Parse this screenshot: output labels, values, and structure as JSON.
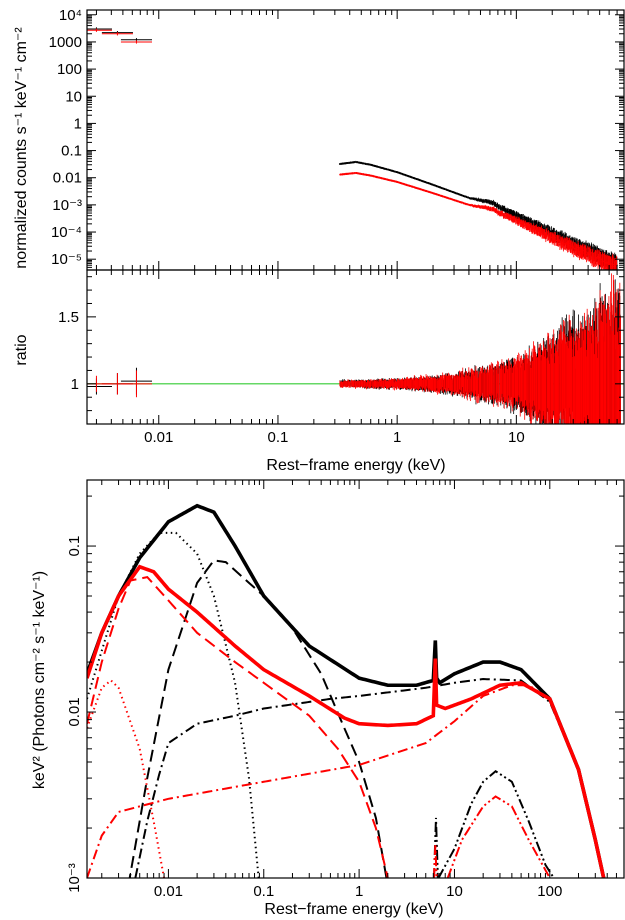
{
  "colors": {
    "black": "#000000",
    "red": "#ff0000",
    "unity": "#33cc33"
  },
  "chart_data": [
    {
      "panel": "top",
      "type": "scatter",
      "ylabel": "normalized counts s⁻¹ keV⁻¹ cm⁻²",
      "xscale": "log",
      "yscale": "log",
      "xlim": [
        0.0025,
        80
      ],
      "ylim": [
        4e-06,
        15000
      ],
      "y_ticklabels": [
        {
          "v": 10000,
          "t": "10⁴"
        },
        {
          "v": 1000,
          "t": "1000"
        },
        {
          "v": 100,
          "t": "100"
        },
        {
          "v": 10,
          "t": "10"
        },
        {
          "v": 1,
          "t": "1"
        },
        {
          "v": 0.1,
          "t": "0.1"
        },
        {
          "v": 0.01,
          "t": "0.01"
        },
        {
          "v": 0.001,
          "t": "10⁻³"
        },
        {
          "v": 0.0001,
          "t": "10⁻⁴"
        },
        {
          "v": 1e-05,
          "t": "10⁻⁵"
        }
      ],
      "series": [
        {
          "color": "black",
          "uv_points": [
            [
              0.003,
              3000
            ],
            [
              0.0045,
              2200
            ],
            [
              0.0065,
              1200
            ]
          ],
          "xray_curve": [
            [
              0.33,
              0.032
            ],
            [
              0.45,
              0.038
            ],
            [
              0.6,
              0.03
            ],
            [
              1,
              0.016
            ],
            [
              2,
              0.0055
            ],
            [
              4,
              0.0018
            ],
            [
              6.4,
              0.0012
            ],
            [
              7,
              0.0009
            ],
            [
              10,
              0.0004
            ],
            [
              20,
              9e-05
            ],
            [
              40,
              2e-05
            ],
            [
              70,
              6.5e-06
            ]
          ]
        },
        {
          "color": "red",
          "uv_points": [
            [
              0.003,
              2700
            ],
            [
              0.0045,
              2000
            ],
            [
              0.0065,
              1000
            ]
          ],
          "xray_curve": [
            [
              0.33,
              0.013
            ],
            [
              0.45,
              0.015
            ],
            [
              0.6,
              0.012
            ],
            [
              1,
              0.007
            ],
            [
              2,
              0.0027
            ],
            [
              4,
              0.001
            ],
            [
              6.4,
              0.0007
            ],
            [
              7,
              0.00055
            ],
            [
              10,
              0.00026
            ],
            [
              20,
              6e-05
            ],
            [
              40,
              1.5e-05
            ],
            [
              70,
              5e-06
            ]
          ]
        }
      ]
    },
    {
      "panel": "middle",
      "type": "scatter",
      "ylabel": "ratio",
      "xlabel": "Rest−frame energy (keV)",
      "xscale": "log",
      "xlim": [
        0.0025,
        80
      ],
      "ylim": [
        0.7,
        1.85
      ],
      "y_ticklabels": [
        {
          "v": 1,
          "t": "1"
        },
        {
          "v": 1.5,
          "t": "1.5"
        }
      ],
      "x_ticklabels": [
        {
          "v": 0.01,
          "t": "0.01"
        },
        {
          "v": 0.1,
          "t": "0.1"
        },
        {
          "v": 1,
          "t": "1"
        },
        {
          "v": 10,
          "t": "10"
        }
      ],
      "unity_line": 1,
      "scatter_growth": [
        [
          0.3,
          0.02
        ],
        [
          1,
          0.03
        ],
        [
          3,
          0.06
        ],
        [
          10,
          0.15
        ],
        [
          20,
          0.3
        ],
        [
          40,
          0.4
        ],
        [
          70,
          0.6
        ]
      ]
    },
    {
      "panel": "bottom",
      "type": "line",
      "ylabel": "keV² (Photons cm⁻² s⁻¹ keV⁻¹)",
      "xlabel": "Rest−frame energy (keV)",
      "xscale": "log",
      "yscale": "log",
      "xlim": [
        0.0014,
        600
      ],
      "ylim": [
        0.001,
        0.25
      ],
      "x_ticklabels": [
        {
          "v": 0.01,
          "t": "0.01"
        },
        {
          "v": 0.1,
          "t": "0.1"
        },
        {
          "v": 1,
          "t": "1"
        },
        {
          "v": 10,
          "t": "10"
        },
        {
          "v": 100,
          "t": "100"
        }
      ],
      "y_ticklabels": [
        {
          "v": 0.1,
          "t": "0.1"
        },
        {
          "v": 0.01,
          "t": "0.01"
        },
        {
          "v": 0.001,
          "t": "10⁻³"
        }
      ],
      "series": [
        {
          "color": "black",
          "style": "solid",
          "points": [
            [
              0.0014,
              0.017
            ],
            [
              0.002,
              0.03
            ],
            [
              0.003,
              0.05
            ],
            [
              0.005,
              0.085
            ],
            [
              0.01,
              0.14
            ],
            [
              0.02,
              0.175
            ],
            [
              0.03,
              0.16
            ],
            [
              0.05,
              0.1
            ],
            [
              0.1,
              0.05
            ],
            [
              0.3,
              0.025
            ],
            [
              1,
              0.016
            ],
            [
              2,
              0.0145
            ],
            [
              4,
              0.0145
            ],
            [
              6,
              0.0155
            ],
            [
              6.3,
              0.027
            ],
            [
              6.5,
              0.016
            ],
            [
              7,
              0.015
            ],
            [
              10,
              0.017
            ],
            [
              20,
              0.02
            ],
            [
              30,
              0.02
            ],
            [
              50,
              0.018
            ],
            [
              100,
              0.012
            ],
            [
              200,
              0.0045
            ],
            [
              300,
              0.0017
            ],
            [
              400,
              0.0008
            ]
          ]
        },
        {
          "color": "red",
          "style": "solid",
          "points": [
            [
              0.0014,
              0.016
            ],
            [
              0.002,
              0.03
            ],
            [
              0.003,
              0.05
            ],
            [
              0.005,
              0.075
            ],
            [
              0.007,
              0.07
            ],
            [
              0.01,
              0.055
            ],
            [
              0.02,
              0.04
            ],
            [
              0.05,
              0.025
            ],
            [
              0.1,
              0.018
            ],
            [
              0.3,
              0.0125
            ],
            [
              0.7,
              0.0092
            ],
            [
              1,
              0.0085
            ],
            [
              2,
              0.0083
            ],
            [
              4,
              0.0085
            ],
            [
              6,
              0.0095
            ],
            [
              6.3,
              0.021
            ],
            [
              6.5,
              0.011
            ],
            [
              8,
              0.0105
            ],
            [
              15,
              0.012
            ],
            [
              30,
              0.0145
            ],
            [
              50,
              0.015
            ],
            [
              100,
              0.012
            ],
            [
              200,
              0.0045
            ],
            [
              300,
              0.0017
            ],
            [
              400,
              0.0008
            ]
          ]
        },
        {
          "color": "black",
          "style": "dotted",
          "points": [
            [
              0.0014,
              0.012
            ],
            [
              0.003,
              0.05
            ],
            [
              0.005,
              0.09
            ],
            [
              0.008,
              0.12
            ],
            [
              0.012,
              0.12
            ],
            [
              0.02,
              0.09
            ],
            [
              0.03,
              0.05
            ],
            [
              0.05,
              0.015
            ],
            [
              0.07,
              0.004
            ],
            [
              0.09,
              0.0009
            ]
          ]
        },
        {
          "color": "black",
          "style": "dashed",
          "points": [
            [
              0.0038,
              0.0009
            ],
            [
              0.006,
              0.004
            ],
            [
              0.01,
              0.018
            ],
            [
              0.02,
              0.06
            ],
            [
              0.03,
              0.082
            ],
            [
              0.04,
              0.08
            ],
            [
              0.07,
              0.06
            ],
            [
              0.1,
              0.05
            ],
            [
              0.2,
              0.032
            ],
            [
              0.4,
              0.017
            ],
            [
              0.7,
              0.008
            ],
            [
              1,
              0.005
            ],
            [
              1.5,
              0.0023
            ],
            [
              2,
              0.0009
            ]
          ]
        },
        {
          "color": "red",
          "style": "dashed",
          "points": [
            [
              0.0014,
              0.0085
            ],
            [
              0.002,
              0.02
            ],
            [
              0.003,
              0.042
            ],
            [
              0.004,
              0.062
            ],
            [
              0.006,
              0.065
            ],
            [
              0.01,
              0.047
            ],
            [
              0.02,
              0.03
            ],
            [
              0.05,
              0.02
            ],
            [
              0.1,
              0.015
            ],
            [
              0.3,
              0.0095
            ],
            [
              0.6,
              0.006
            ],
            [
              1,
              0.0038
            ],
            [
              1.5,
              0.002
            ],
            [
              2,
              0.001
            ]
          ]
        },
        {
          "color": "red",
          "style": "dotted",
          "points": [
            [
              0.0014,
              0.008
            ],
            [
              0.002,
              0.014
            ],
            [
              0.0025,
              0.0155
            ],
            [
              0.003,
              0.014
            ],
            [
              0.005,
              0.006
            ],
            [
              0.007,
              0.0022
            ],
            [
              0.009,
              0.001
            ]
          ]
        },
        {
          "color": "black",
          "style": "dashdot",
          "points": [
            [
              0.0045,
              0.001
            ],
            [
              0.006,
              0.0022
            ],
            [
              0.008,
              0.0042
            ],
            [
              0.01,
              0.0065
            ],
            [
              0.02,
              0.0085
            ],
            [
              0.05,
              0.0095
            ],
            [
              0.1,
              0.0105
            ],
            [
              0.5,
              0.012
            ],
            [
              1,
              0.0125
            ],
            [
              5,
              0.014
            ],
            [
              10,
              0.015
            ],
            [
              20,
              0.0158
            ],
            [
              50,
              0.0155
            ],
            [
              100,
              0.0115
            ],
            [
              200,
              0.0045
            ],
            [
              300,
              0.0017
            ],
            [
              400,
              0.0008
            ]
          ]
        },
        {
          "color": "red",
          "style": "dashdot",
          "points": [
            [
              0.0014,
              0.001
            ],
            [
              0.002,
              0.0018
            ],
            [
              0.003,
              0.0025
            ],
            [
              0.01,
              0.003
            ],
            [
              0.1,
              0.0038
            ],
            [
              1,
              0.0048
            ],
            [
              5,
              0.0065
            ],
            [
              10,
              0.0088
            ],
            [
              20,
              0.0125
            ],
            [
              40,
              0.0145
            ],
            [
              60,
              0.0145
            ],
            [
              100,
              0.012
            ],
            [
              200,
              0.0045
            ],
            [
              300,
              0.0017
            ],
            [
              400,
              0.0008
            ]
          ]
        },
        {
          "color": "black",
          "style": "dotdotdash",
          "points": [
            [
              6.8,
              0.001
            ],
            [
              10,
              0.0015
            ],
            [
              15,
              0.0028
            ],
            [
              20,
              0.0038
            ],
            [
              27,
              0.0044
            ],
            [
              40,
              0.0038
            ],
            [
              60,
              0.0022
            ],
            [
              90,
              0.0012
            ],
            [
              110,
              0.001
            ]
          ]
        },
        {
          "color": "red",
          "style": "dotdotdash",
          "points": [
            [
              8.5,
              0.001
            ],
            [
              12,
              0.0017
            ],
            [
              20,
              0.0027
            ],
            [
              27,
              0.0031
            ],
            [
              40,
              0.0027
            ],
            [
              60,
              0.0017
            ],
            [
              100,
              0.001
            ]
          ]
        },
        {
          "color": "black",
          "style": "dotdotdash",
          "points": [
            [
              6.1,
              0.001
            ],
            [
              6.4,
              0.0023
            ],
            [
              6.7,
              0.001
            ]
          ]
        },
        {
          "color": "red",
          "style": "dotdotdash",
          "points": [
            [
              6.1,
              0.001
            ],
            [
              6.3,
              0.0016
            ],
            [
              6.5,
              0.001
            ]
          ]
        }
      ]
    }
  ]
}
